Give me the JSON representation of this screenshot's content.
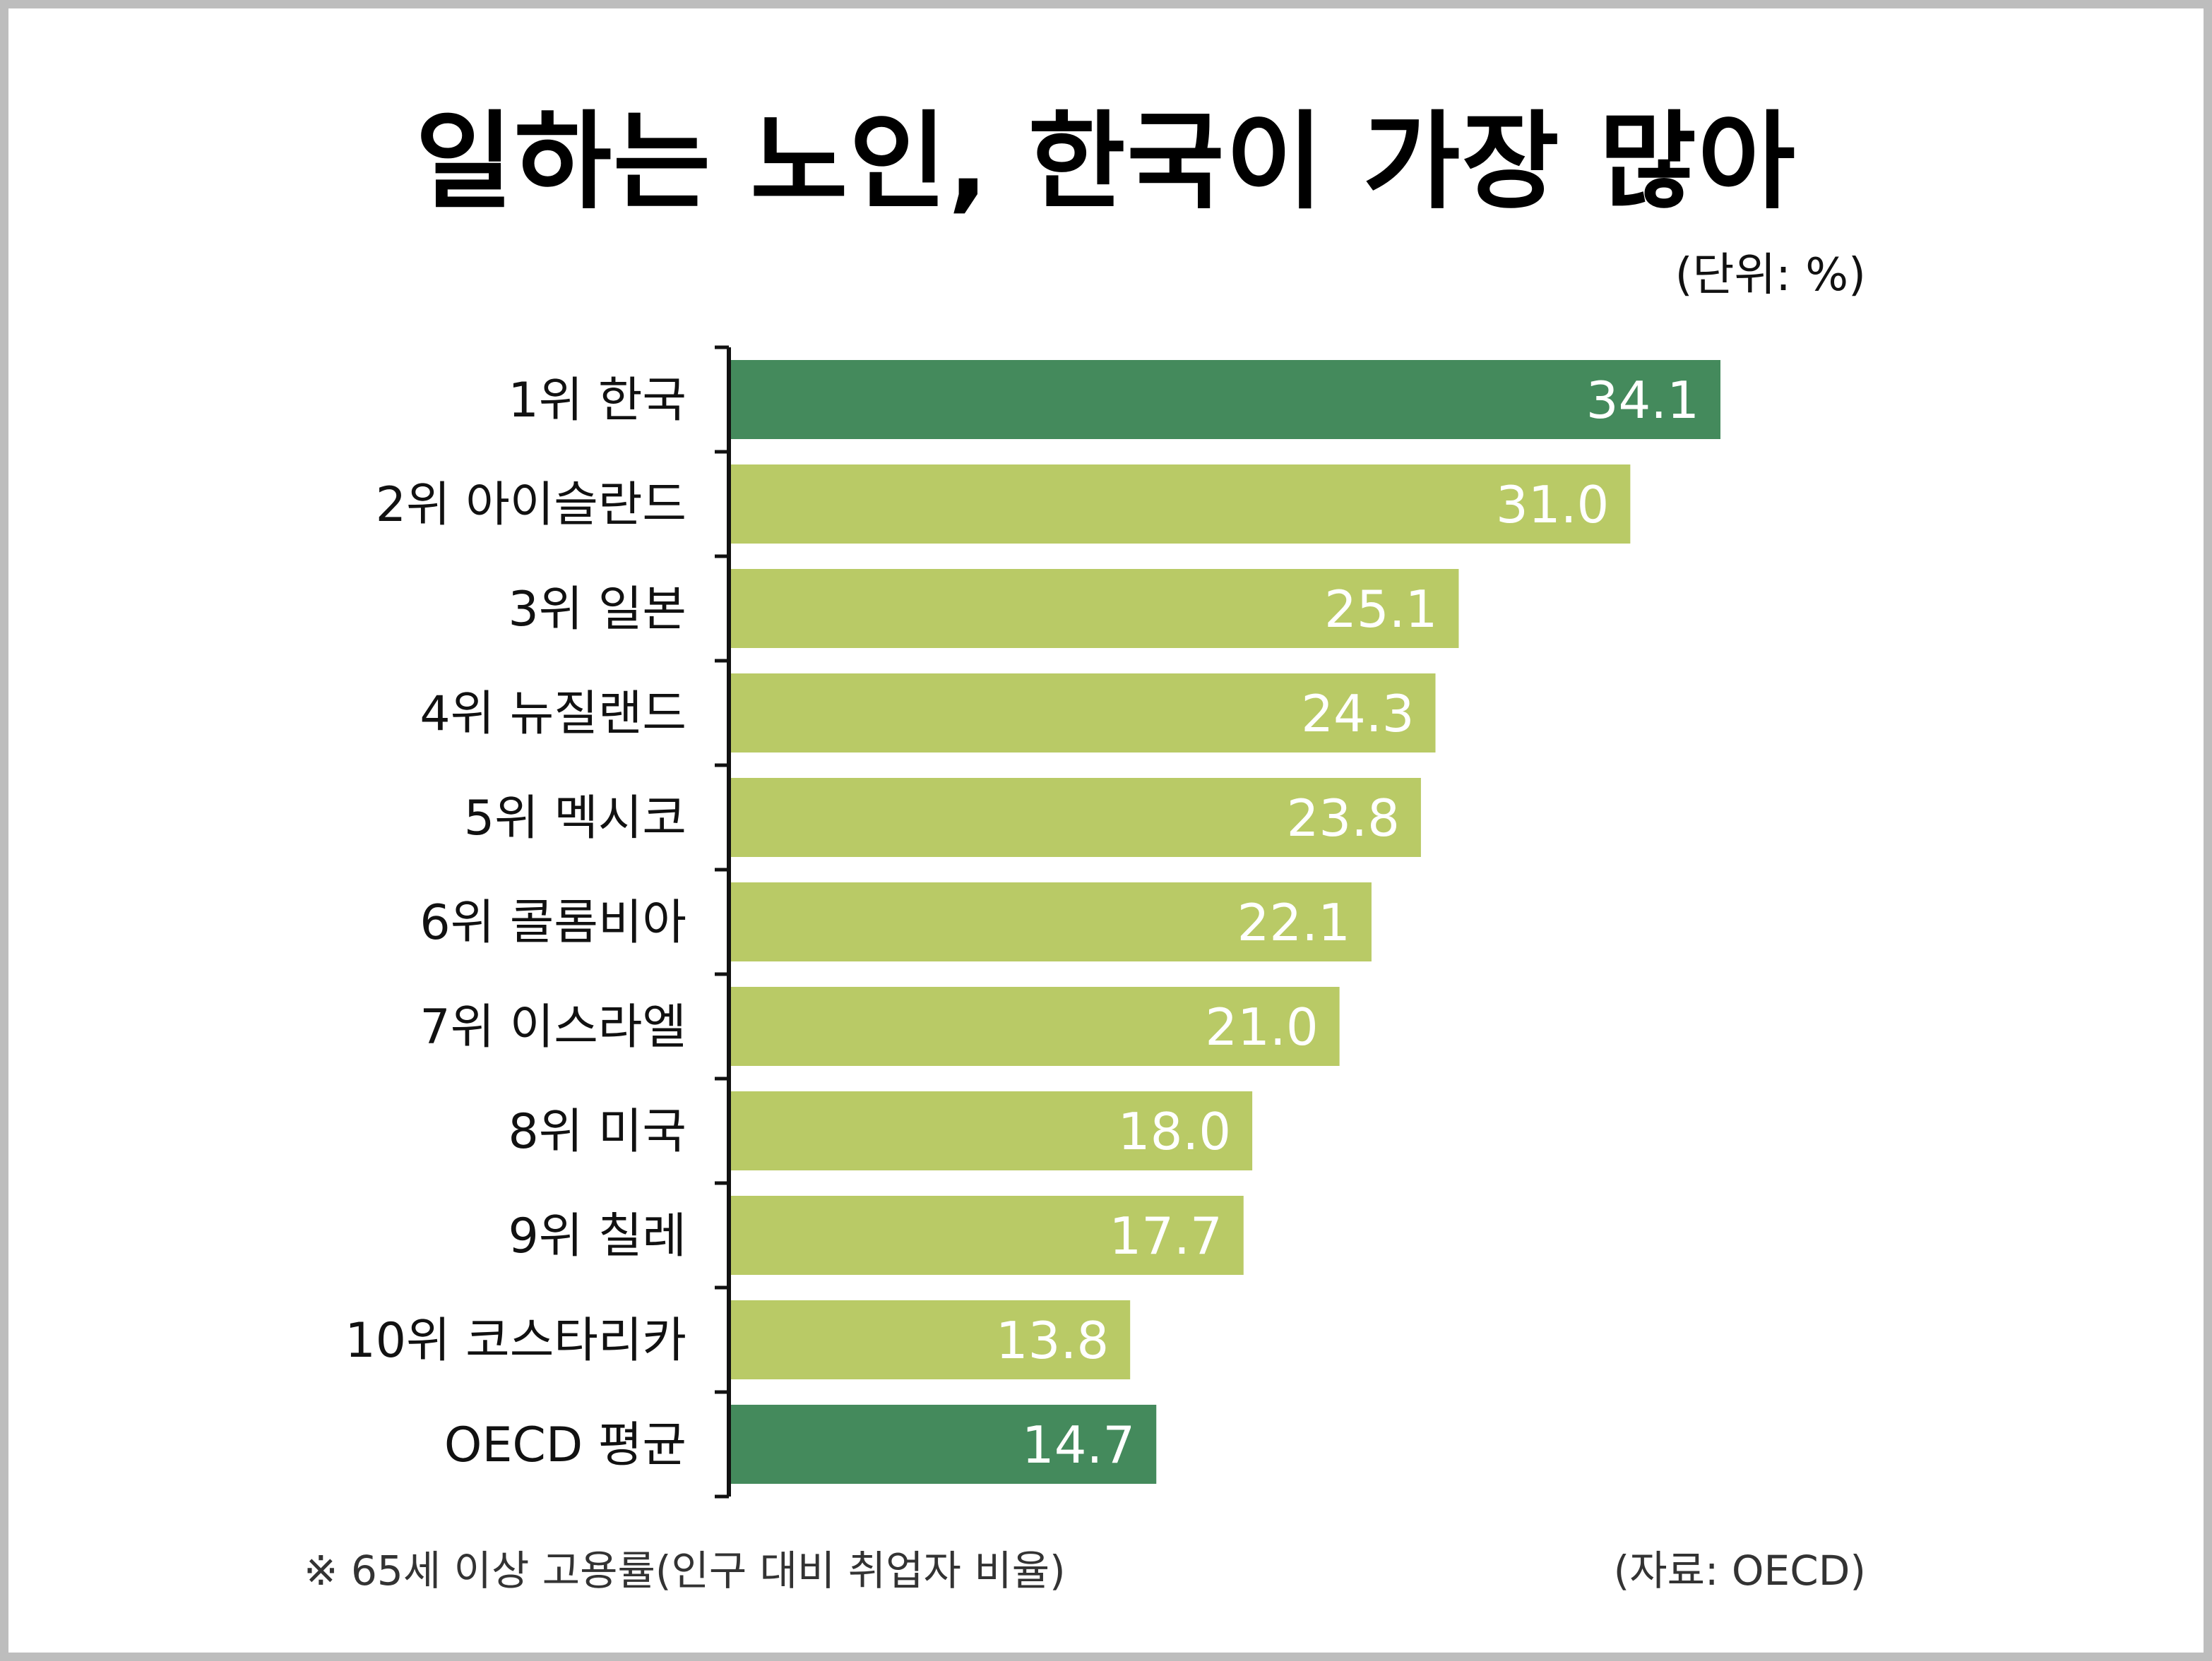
{
  "title": "일하는 노인, 한국이 가장 많아",
  "unit_label": "(단위: %)",
  "footnote": "※ 65세 이상 고용률(인구 대비 취업자 비율)",
  "source": "(자료: OECD)",
  "colors": {
    "highlight": "#448a5c",
    "normal": "#b9ca66",
    "value_text": "#ffffff",
    "axis": "#111111"
  },
  "chart_data": {
    "type": "bar",
    "orientation": "horizontal",
    "categories": [
      "1위 한국",
      "2위 아이슬란드",
      "3위 일본",
      "4위 뉴질랜드",
      "5위 멕시코",
      "6위 콜롬비아",
      "7위 이스라엘",
      "8위 미국",
      "9위 칠레",
      "10위 코스타리카",
      "OECD 평균"
    ],
    "values": [
      34.1,
      31.0,
      25.1,
      24.3,
      23.8,
      22.1,
      21.0,
      18.0,
      17.7,
      13.8,
      14.7
    ],
    "value_labels": [
      "34.1",
      "31.0",
      "25.1",
      "24.3",
      "23.8",
      "22.1",
      "21.0",
      "18.0",
      "17.7",
      "13.8",
      "14.7"
    ],
    "highlighted": [
      true,
      false,
      false,
      false,
      false,
      false,
      false,
      false,
      false,
      false,
      true
    ],
    "xlim": [
      0,
      34.1
    ],
    "title": "일하는 노인, 한국이 가장 많아",
    "unit": "(단위: %)",
    "grid": false,
    "legend": "none"
  }
}
